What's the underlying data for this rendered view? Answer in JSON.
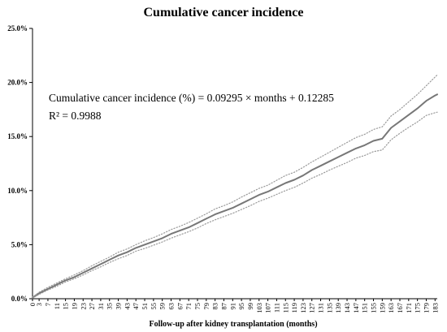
{
  "chart_data": {
    "type": "line",
    "title": "Cumulative cancer incidence",
    "xlabel": "Follow-up after kidney transplantation (months)",
    "ylabel": "",
    "ylim": [
      0,
      25
    ],
    "y_ticks": [
      "0.0%",
      "5.0%",
      "10.0%",
      "15.0%",
      "20.0%",
      "25.0%"
    ],
    "y_tick_values": [
      0,
      5,
      10,
      15,
      20,
      25
    ],
    "x_ticks": [
      0,
      3,
      7,
      11,
      15,
      19,
      23,
      27,
      31,
      35,
      39,
      43,
      47,
      51,
      55,
      59,
      63,
      67,
      71,
      75,
      79,
      83,
      87,
      91,
      95,
      99,
      103,
      107,
      111,
      115,
      119,
      123,
      127,
      131,
      135,
      139,
      143,
      147,
      151,
      155,
      159,
      163,
      167,
      171,
      175,
      179,
      183
    ],
    "xlim": [
      0,
      184
    ],
    "grid": false,
    "annotations": [
      "Cumulative cancer incidence (%) = 0.09295 × months + 0.12285",
      "R² = 0.9988"
    ],
    "series": [
      {
        "style": "solid",
        "color": "#777777",
        "x": [
          0,
          3,
          7,
          11,
          15,
          19,
          23,
          27,
          31,
          35,
          39,
          43,
          47,
          51,
          55,
          59,
          63,
          67,
          71,
          75,
          79,
          83,
          87,
          91,
          95,
          99,
          103,
          107,
          111,
          115,
          119,
          123,
          127,
          131,
          135,
          139,
          143,
          147,
          151,
          155,
          159,
          163,
          167,
          171,
          175,
          179,
          183,
          184
        ],
        "values": [
          0.1,
          0.5,
          0.9,
          1.3,
          1.7,
          2.0,
          2.4,
          2.8,
          3.2,
          3.6,
          4.0,
          4.3,
          4.7,
          5.0,
          5.3,
          5.6,
          6.0,
          6.3,
          6.6,
          7.0,
          7.4,
          7.8,
          8.1,
          8.4,
          8.8,
          9.2,
          9.6,
          9.9,
          10.3,
          10.7,
          11.0,
          11.4,
          11.9,
          12.3,
          12.7,
          13.1,
          13.5,
          13.9,
          14.2,
          14.6,
          14.8,
          15.8,
          16.4,
          17.0,
          17.6,
          18.3,
          18.8,
          18.9
        ]
      },
      {
        "style": "dotted-upper",
        "color": "#999999",
        "x": [
          0,
          3,
          7,
          11,
          15,
          19,
          23,
          27,
          31,
          35,
          39,
          43,
          47,
          51,
          55,
          59,
          63,
          67,
          71,
          75,
          79,
          83,
          87,
          91,
          95,
          99,
          103,
          107,
          111,
          115,
          119,
          123,
          127,
          131,
          135,
          139,
          143,
          147,
          151,
          155,
          159,
          163,
          167,
          171,
          175,
          179,
          183,
          184
        ],
        "values": [
          0.15,
          0.6,
          1.05,
          1.45,
          1.85,
          2.2,
          2.6,
          3.05,
          3.45,
          3.85,
          4.3,
          4.6,
          5.0,
          5.35,
          5.65,
          6.0,
          6.4,
          6.7,
          7.05,
          7.45,
          7.85,
          8.3,
          8.6,
          8.95,
          9.4,
          9.8,
          10.2,
          10.5,
          10.95,
          11.4,
          11.7,
          12.15,
          12.65,
          13.1,
          13.55,
          14.0,
          14.45,
          14.9,
          15.2,
          15.65,
          15.9,
          16.9,
          17.5,
          18.2,
          18.9,
          19.7,
          20.5,
          20.7
        ]
      },
      {
        "style": "dotted-lower",
        "color": "#999999",
        "x": [
          0,
          3,
          7,
          11,
          15,
          19,
          23,
          27,
          31,
          35,
          39,
          43,
          47,
          51,
          55,
          59,
          63,
          67,
          71,
          75,
          79,
          83,
          87,
          91,
          95,
          99,
          103,
          107,
          111,
          115,
          119,
          123,
          127,
          131,
          135,
          139,
          143,
          147,
          151,
          155,
          159,
          163,
          167,
          171,
          175,
          179,
          183,
          184
        ],
        "values": [
          0.05,
          0.4,
          0.8,
          1.15,
          1.55,
          1.85,
          2.2,
          2.6,
          2.95,
          3.35,
          3.7,
          4.0,
          4.4,
          4.65,
          4.95,
          5.25,
          5.6,
          5.9,
          6.2,
          6.55,
          6.95,
          7.3,
          7.6,
          7.9,
          8.25,
          8.6,
          9.0,
          9.3,
          9.65,
          10.0,
          10.3,
          10.7,
          11.15,
          11.5,
          11.9,
          12.25,
          12.6,
          13.0,
          13.25,
          13.6,
          13.75,
          14.7,
          15.3,
          15.85,
          16.35,
          16.95,
          17.2,
          17.25
        ]
      }
    ]
  }
}
